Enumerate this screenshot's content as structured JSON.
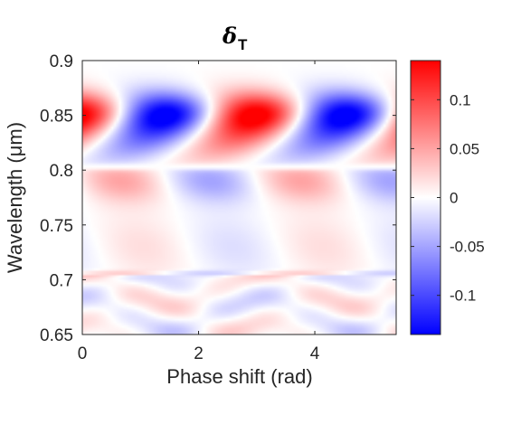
{
  "chart_data": {
    "type": "heatmap",
    "title": {
      "symbol": "δ",
      "subscript": "T"
    },
    "xlabel": "Phase shift (rad)",
    "ylabel": "Wavelength (μm)",
    "xlim": [
      0,
      5.4
    ],
    "ylim": [
      0.65,
      0.9
    ],
    "x_ticks": [
      0,
      2,
      4
    ],
    "x_tick_labels": [
      "0",
      "2",
      "4"
    ],
    "y_ticks": [
      0.65,
      0.7,
      0.75,
      0.8,
      0.85,
      0.9
    ],
    "y_tick_labels": [
      "0.65",
      "0.7",
      "0.75",
      "0.8",
      "0.85",
      "0.9"
    ],
    "colorbar": {
      "clim": [
        -0.14,
        0.14
      ],
      "ticks": [
        -0.1,
        -0.05,
        0,
        0.05,
        0.1
      ],
      "tick_labels": [
        "-0.1",
        "-0.05",
        "0",
        "0.05",
        "0.1"
      ],
      "colormap": [
        "#0000ff",
        "#ffffff",
        "#ff0000"
      ]
    },
    "grid": false,
    "features": [
      {
        "x": 1.1,
        "y": 0.85,
        "value": -0.14
      },
      {
        "x": 2.65,
        "y": 0.85,
        "value": 0.14
      },
      {
        "x": 4.2,
        "y": 0.85,
        "value": -0.14
      },
      {
        "x": 0.3,
        "y": 0.85,
        "value": 0.12
      },
      {
        "x": 5.3,
        "y": 0.845,
        "value": 0.1
      },
      {
        "x": 0.6,
        "y": 0.795,
        "value": 0.05
      },
      {
        "x": 2.4,
        "y": 0.79,
        "value": -0.04
      },
      {
        "x": 3.4,
        "y": 0.795,
        "value": 0.05
      },
      {
        "x": 4.9,
        "y": 0.79,
        "value": -0.04
      }
    ]
  }
}
